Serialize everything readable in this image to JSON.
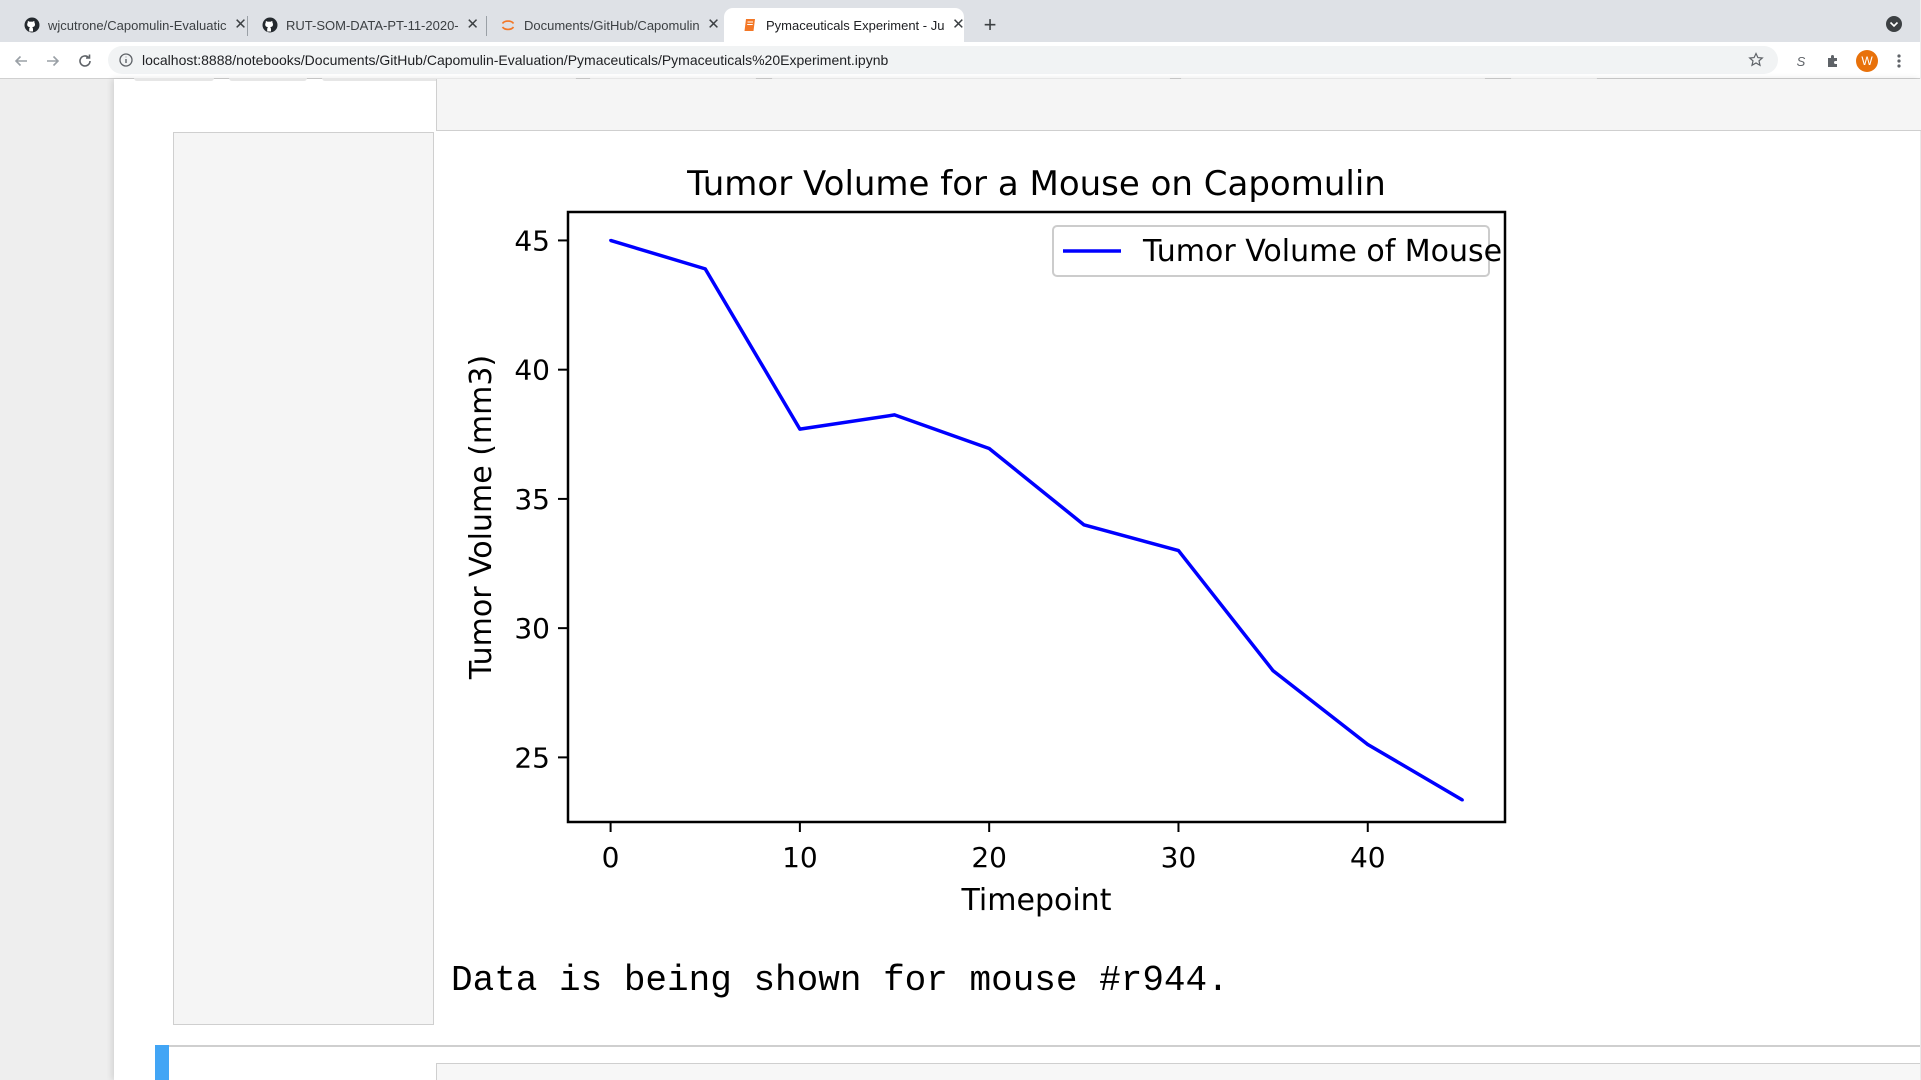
{
  "browser": {
    "tabs": [
      {
        "title": "wjcutrone/Capomulin-Evaluatic",
        "icon": "github-icon",
        "active": false
      },
      {
        "title": "RUT-SOM-DATA-PT-11-2020-",
        "icon": "github-icon",
        "active": false
      },
      {
        "title": "Documents/GitHub/Capomulin",
        "icon": "jupyter-icon",
        "active": false
      },
      {
        "title": "Pymaceuticals Experiment - Ju",
        "icon": "notebook-icon",
        "active": true
      }
    ],
    "url": "localhost:8888/notebooks/Documents/GitHub/Capomulin-Evaluation/Pymaceuticals/Pymaceuticals%20Experiment.ipynb",
    "profile_initial": "W",
    "extension_label": "S",
    "accent": "#e8710a"
  },
  "notebook": {
    "output_text": "Data is being shown for mouse #r944."
  },
  "chart_data": {
    "type": "line",
    "title": "Tumor Volume for a Mouse on Capomulin",
    "xlabel": "Timepoint",
    "ylabel": "Tumor Volume (mm3)",
    "x": [
      0,
      5,
      10,
      15,
      20,
      25,
      30,
      35,
      40,
      45
    ],
    "series": [
      {
        "name": "Tumor Volume of Mouse",
        "color": "#0000ff",
        "values": [
          45.0,
          43.9,
          37.7,
          38.25,
          36.95,
          34.0,
          33.0,
          28.35,
          25.5,
          23.35
        ]
      }
    ],
    "xlim": [
      -2.25,
      47.25
    ],
    "ylim": [
      22.5,
      46.1
    ],
    "xticks": [
      0,
      10,
      20,
      30,
      40
    ],
    "yticks": [
      25,
      30,
      35,
      40,
      45
    ],
    "legend": "upper right",
    "grid": false
  }
}
